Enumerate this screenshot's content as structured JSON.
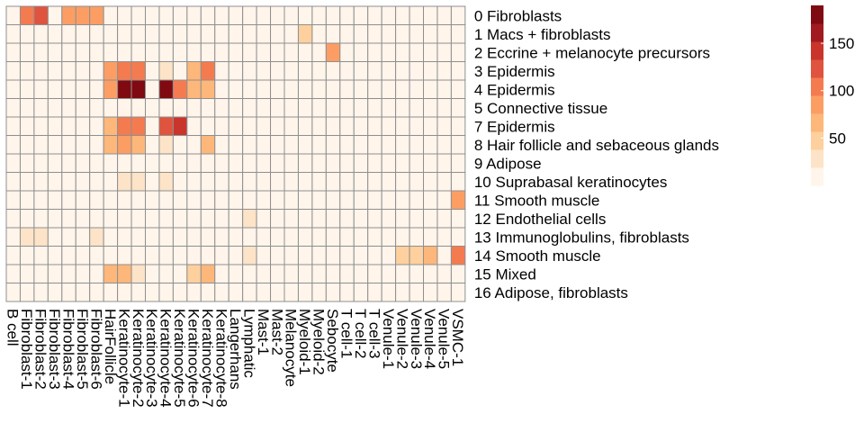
{
  "chart_data": {
    "type": "heatmap",
    "title": "",
    "xlabel": "",
    "ylabel": "",
    "columns": [
      "B cell",
      "Fibroblast-1",
      "Fibroblast-2",
      "Fibroblast-3",
      "Fibroblast-4",
      "Fibroblast-5",
      "Fibroblast-6",
      "HairFollicle",
      "Keratinocyte-1",
      "Keratinocyte-2",
      "Keratinocyte-3",
      "Keratinocyte-4",
      "Keratinocyte-5",
      "Keratinocyte-6",
      "Keratinocyte-7",
      "Keratinocyte-8",
      "Langerhans",
      "Lymphatic",
      "Mast-1",
      "Mast-2",
      "Melanocyte",
      "Myeloid-1",
      "Myeloid-2",
      "Sebocyte",
      "T cell-1",
      "T cell-2",
      "T cell-3",
      "Venule-1",
      "Venule-2",
      "Venule-3",
      "Venule-4",
      "Venule-5",
      "VSMC-1"
    ],
    "rows": [
      "0 Fibroblasts",
      "1 Macs + fibroblasts",
      "2 Eccrine + melanocyte precursors",
      "3 Epidermis",
      "4 Epidermis",
      "5 Connective tissue",
      "7 Epidermis",
      "8 Hair follicle and sebaceous glands",
      "9 Adipose",
      "10 Suprabasal keratinocytes",
      "11 Smooth muscle",
      "12 Endothelial cells",
      "13 Immunoglobulins, fibroblasts",
      "14 Smooth muscle",
      "15 Mixed",
      "16 Adipose, fibroblasts"
    ],
    "values": [
      [
        0,
        110,
        130,
        0,
        80,
        80,
        75,
        0,
        0,
        0,
        0,
        0,
        0,
        0,
        0,
        0,
        0,
        0,
        0,
        0,
        0,
        0,
        0,
        0,
        0,
        0,
        0,
        0,
        0,
        0,
        0,
        0,
        0
      ],
      [
        0,
        0,
        0,
        0,
        0,
        0,
        0,
        0,
        0,
        0,
        0,
        0,
        0,
        0,
        0,
        0,
        0,
        0,
        0,
        0,
        0,
        30,
        0,
        0,
        0,
        0,
        0,
        0,
        0,
        0,
        0,
        0,
        0
      ],
      [
        0,
        0,
        0,
        0,
        0,
        0,
        0,
        0,
        0,
        0,
        0,
        0,
        0,
        0,
        0,
        0,
        0,
        0,
        0,
        0,
        0,
        0,
        0,
        70,
        0,
        0,
        0,
        0,
        0,
        0,
        0,
        0,
        0
      ],
      [
        0,
        0,
        0,
        0,
        0,
        0,
        0,
        70,
        110,
        110,
        0,
        20,
        0,
        40,
        110,
        0,
        0,
        0,
        0,
        0,
        0,
        0,
        0,
        0,
        0,
        0,
        0,
        0,
        0,
        0,
        0,
        0,
        0
      ],
      [
        0,
        0,
        0,
        0,
        0,
        0,
        0,
        70,
        185,
        185,
        0,
        190,
        110,
        60,
        50,
        0,
        0,
        0,
        0,
        0,
        0,
        0,
        0,
        0,
        0,
        0,
        0,
        0,
        0,
        0,
        0,
        0,
        0
      ],
      [
        0,
        0,
        0,
        0,
        0,
        0,
        0,
        0,
        0,
        0,
        0,
        0,
        0,
        0,
        0,
        0,
        0,
        0,
        0,
        0,
        0,
        0,
        0,
        0,
        0,
        0,
        0,
        0,
        0,
        0,
        0,
        0,
        0
      ],
      [
        0,
        0,
        0,
        0,
        0,
        0,
        0,
        50,
        110,
        110,
        0,
        130,
        150,
        0,
        0,
        0,
        0,
        0,
        0,
        0,
        0,
        0,
        0,
        0,
        0,
        0,
        0,
        0,
        0,
        0,
        0,
        0,
        0
      ],
      [
        0,
        0,
        0,
        0,
        0,
        0,
        0,
        55,
        70,
        50,
        0,
        25,
        0,
        0,
        60,
        0,
        0,
        0,
        0,
        0,
        0,
        0,
        0,
        0,
        0,
        0,
        0,
        0,
        0,
        0,
        0,
        0,
        0
      ],
      [
        0,
        0,
        0,
        0,
        0,
        0,
        0,
        0,
        0,
        0,
        0,
        0,
        0,
        0,
        0,
        0,
        0,
        0,
        0,
        0,
        0,
        0,
        0,
        0,
        0,
        0,
        0,
        0,
        0,
        0,
        0,
        0,
        0
      ],
      [
        0,
        0,
        0,
        0,
        0,
        0,
        0,
        0,
        25,
        25,
        0,
        25,
        0,
        0,
        0,
        0,
        0,
        0,
        0,
        0,
        0,
        0,
        0,
        0,
        0,
        0,
        0,
        0,
        0,
        0,
        0,
        0,
        0
      ],
      [
        0,
        0,
        0,
        0,
        0,
        0,
        0,
        0,
        0,
        0,
        0,
        0,
        0,
        0,
        0,
        0,
        0,
        0,
        0,
        0,
        0,
        0,
        0,
        0,
        0,
        0,
        0,
        0,
        0,
        0,
        0,
        0,
        70
      ],
      [
        0,
        0,
        0,
        0,
        0,
        0,
        0,
        0,
        0,
        0,
        0,
        0,
        0,
        0,
        0,
        0,
        0,
        20,
        0,
        0,
        0,
        0,
        0,
        0,
        0,
        0,
        0,
        0,
        0,
        0,
        0,
        0,
        0
      ],
      [
        0,
        25,
        25,
        0,
        0,
        0,
        25,
        0,
        0,
        0,
        0,
        0,
        0,
        0,
        0,
        0,
        0,
        0,
        0,
        0,
        0,
        0,
        0,
        0,
        0,
        0,
        0,
        0,
        0,
        0,
        0,
        0,
        0
      ],
      [
        0,
        0,
        0,
        0,
        0,
        0,
        0,
        0,
        0,
        0,
        0,
        0,
        0,
        0,
        0,
        0,
        0,
        20,
        0,
        0,
        0,
        0,
        0,
        0,
        0,
        0,
        0,
        0,
        30,
        30,
        60,
        0,
        90
      ],
      [
        0,
        0,
        0,
        0,
        0,
        0,
        0,
        40,
        60,
        25,
        0,
        0,
        0,
        35,
        60,
        0,
        0,
        0,
        0,
        0,
        0,
        0,
        0,
        0,
        0,
        0,
        0,
        0,
        0,
        0,
        0,
        0,
        0
      ],
      [
        0,
        0,
        0,
        0,
        0,
        0,
        0,
        0,
        0,
        0,
        0,
        0,
        0,
        0,
        0,
        0,
        0,
        0,
        0,
        0,
        0,
        0,
        0,
        0,
        0,
        0,
        0,
        0,
        0,
        0,
        0,
        0,
        0
      ]
    ],
    "color_scale": {
      "breaks": [
        0,
        12.5,
        25,
        37.5,
        62.5,
        87.5,
        112.5,
        137.5,
        162.5,
        175
      ],
      "colors": [
        "#FFF5EB",
        "#FDE3C7",
        "#FDD09E",
        "#FDB77A",
        "#FC9E64",
        "#F47B50",
        "#E0533E",
        "#C9342B",
        "#A11A20",
        "#7F0A11"
      ]
    },
    "legend": {
      "placement": "top-right",
      "ticks": [
        50,
        100,
        150
      ],
      "range": [
        0,
        190
      ]
    },
    "grid": true
  }
}
